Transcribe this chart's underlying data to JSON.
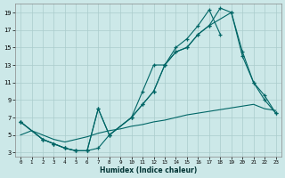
{
  "xlabel": "Humidex (Indice chaleur)",
  "bg_color": "#cce8e8",
  "grid_color": "#aacccc",
  "line_color": "#006666",
  "xlim": [
    -0.5,
    23.5
  ],
  "ylim": [
    2.5,
    20.0
  ],
  "yticks": [
    3,
    5,
    7,
    9,
    11,
    13,
    15,
    17,
    19
  ],
  "xticks": [
    0,
    1,
    2,
    3,
    4,
    5,
    6,
    7,
    8,
    9,
    10,
    11,
    12,
    13,
    14,
    15,
    16,
    17,
    18,
    19,
    20,
    21,
    22,
    23
  ],
  "curve_top_x": [
    0,
    2,
    3,
    4,
    5,
    6,
    7,
    8,
    10,
    11,
    12,
    13,
    14,
    15,
    16,
    17,
    18
  ],
  "curve_top_y": [
    6.5,
    4.5,
    4.0,
    3.5,
    3.2,
    3.2,
    8.0,
    5.0,
    7.0,
    10.0,
    13.0,
    13.0,
    15.0,
    16.0,
    17.5,
    19.3,
    16.5
  ],
  "curve_mid_x": [
    0,
    2,
    3,
    4,
    5,
    6,
    7,
    8,
    10,
    11,
    12,
    13,
    14,
    15,
    16,
    17,
    18,
    19,
    20,
    21,
    22,
    23
  ],
  "curve_mid_y": [
    6.5,
    4.5,
    4.0,
    3.5,
    3.2,
    3.2,
    8.0,
    5.0,
    7.0,
    8.5,
    10.0,
    13.0,
    14.5,
    15.0,
    16.5,
    17.5,
    19.5,
    19.0,
    14.0,
    11.0,
    9.0,
    7.5
  ],
  "curve_low_x": [
    0,
    2,
    3,
    4,
    5,
    6,
    7,
    8,
    10,
    11,
    12,
    13,
    14,
    15,
    16,
    17,
    19,
    20,
    21,
    22,
    23
  ],
  "curve_low_y": [
    6.5,
    4.5,
    4.0,
    3.5,
    3.2,
    3.2,
    3.5,
    5.0,
    7.0,
    8.5,
    10.0,
    13.0,
    14.5,
    15.0,
    16.5,
    17.5,
    19.0,
    14.5,
    11.0,
    9.5,
    7.5
  ],
  "curve_bot_x": [
    0,
    1,
    2,
    3,
    4,
    5,
    6,
    7,
    8,
    9,
    10,
    11,
    12,
    13,
    14,
    15,
    16,
    17,
    18,
    19,
    20,
    21,
    22,
    23
  ],
  "curve_bot_y": [
    5.0,
    5.5,
    5.0,
    4.5,
    4.2,
    4.5,
    4.8,
    5.2,
    5.5,
    5.7,
    6.0,
    6.2,
    6.5,
    6.7,
    7.0,
    7.3,
    7.5,
    7.7,
    7.9,
    8.1,
    8.3,
    8.5,
    8.0,
    7.8
  ]
}
